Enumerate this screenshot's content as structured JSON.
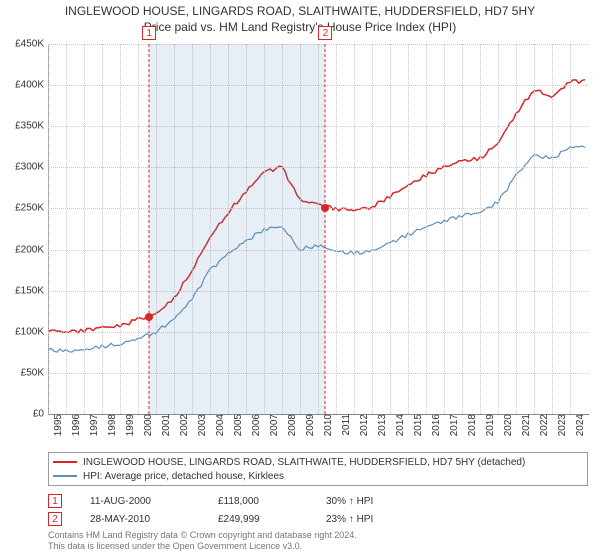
{
  "title": "INGLEWOOD HOUSE, LINGARDS ROAD, SLAITHWAITE, HUDDERSFIELD, HD7 5HY",
  "subtitle": "Price paid vs. HM Land Registry's House Price Index (HPI)",
  "chart": {
    "type": "line",
    "ylim": [
      0,
      450000
    ],
    "ytick_step": 50000,
    "ytick_prefix": "£",
    "ytick_suffix": "K",
    "x_years": [
      1995,
      1996,
      1997,
      1998,
      1999,
      2000,
      2001,
      2002,
      2003,
      2004,
      2005,
      2006,
      2007,
      2008,
      2009,
      2010,
      2011,
      2012,
      2013,
      2014,
      2015,
      2016,
      2017,
      2018,
      2019,
      2020,
      2021,
      2022,
      2023,
      2024
    ],
    "grid_color": "#cccccc",
    "axis_color": "#888888",
    "background_color": "#ffffff",
    "shade_color": "#5b8fb9",
    "series": [
      {
        "name": "INGLEWOOD HOUSE, LINGARDS ROAD, SLAITHWAITE, HUDDERSFIELD, HD7 5HY (detached)",
        "color": "#d62728",
        "width": 1.5,
        "values_by_year": {
          "1995": 102000,
          "1996": 100000,
          "1997": 102000,
          "1998": 105000,
          "1999": 107000,
          "2000": 115000,
          "2001": 122000,
          "2002": 140000,
          "2003": 175000,
          "2004": 215000,
          "2005": 245000,
          "2006": 270000,
          "2007": 295000,
          "2008": 300000,
          "2009": 260000,
          "2010": 255000,
          "2011": 250000,
          "2012": 248000,
          "2013": 252000,
          "2014": 265000,
          "2015": 278000,
          "2016": 290000,
          "2017": 300000,
          "2018": 308000,
          "2019": 310000,
          "2020": 330000,
          "2021": 365000,
          "2022": 395000,
          "2023": 385000,
          "2024": 405000
        }
      },
      {
        "name": "HPI: Average price, detached house, Kirklees",
        "color": "#5b8fb9",
        "width": 1.2,
        "values_by_year": {
          "1995": 78000,
          "1996": 76000,
          "1997": 78000,
          "1998": 82000,
          "1999": 85000,
          "2000": 92000,
          "2001": 100000,
          "2002": 115000,
          "2003": 140000,
          "2004": 175000,
          "2005": 195000,
          "2006": 210000,
          "2007": 225000,
          "2008": 228000,
          "2009": 200000,
          "2010": 205000,
          "2011": 198000,
          "2012": 195000,
          "2013": 198000,
          "2014": 208000,
          "2015": 218000,
          "2016": 228000,
          "2017": 235000,
          "2018": 242000,
          "2019": 245000,
          "2020": 258000,
          "2021": 290000,
          "2022": 315000,
          "2023": 310000,
          "2024": 325000
        }
      }
    ],
    "sales": [
      {
        "n": "1",
        "year_frac": 2000.62,
        "price": 118000,
        "marker_color": "#d62728"
      },
      {
        "n": "2",
        "year_frac": 2010.41,
        "price": 249999,
        "marker_color": "#d62728"
      }
    ]
  },
  "legend": {
    "items": [
      {
        "color": "#d62728",
        "label": "INGLEWOOD HOUSE, LINGARDS ROAD, SLAITHWAITE, HUDDERSFIELD, HD7 5HY (detached)"
      },
      {
        "color": "#5b8fb9",
        "label": "HPI: Average price, detached house, Kirklees"
      }
    ]
  },
  "sales_table": [
    {
      "n": "1",
      "color": "#d62728",
      "date": "11-AUG-2000",
      "price": "£118,000",
      "delta": "30% ↑ HPI"
    },
    {
      "n": "2",
      "color": "#d62728",
      "date": "28-MAY-2010",
      "price": "£249,999",
      "delta": "23% ↑ HPI"
    }
  ],
  "footer": {
    "line1": "Contains HM Land Registry data © Crown copyright and database right 2024.",
    "line2": "This data is licensed under the Open Government Licence v3.0."
  }
}
